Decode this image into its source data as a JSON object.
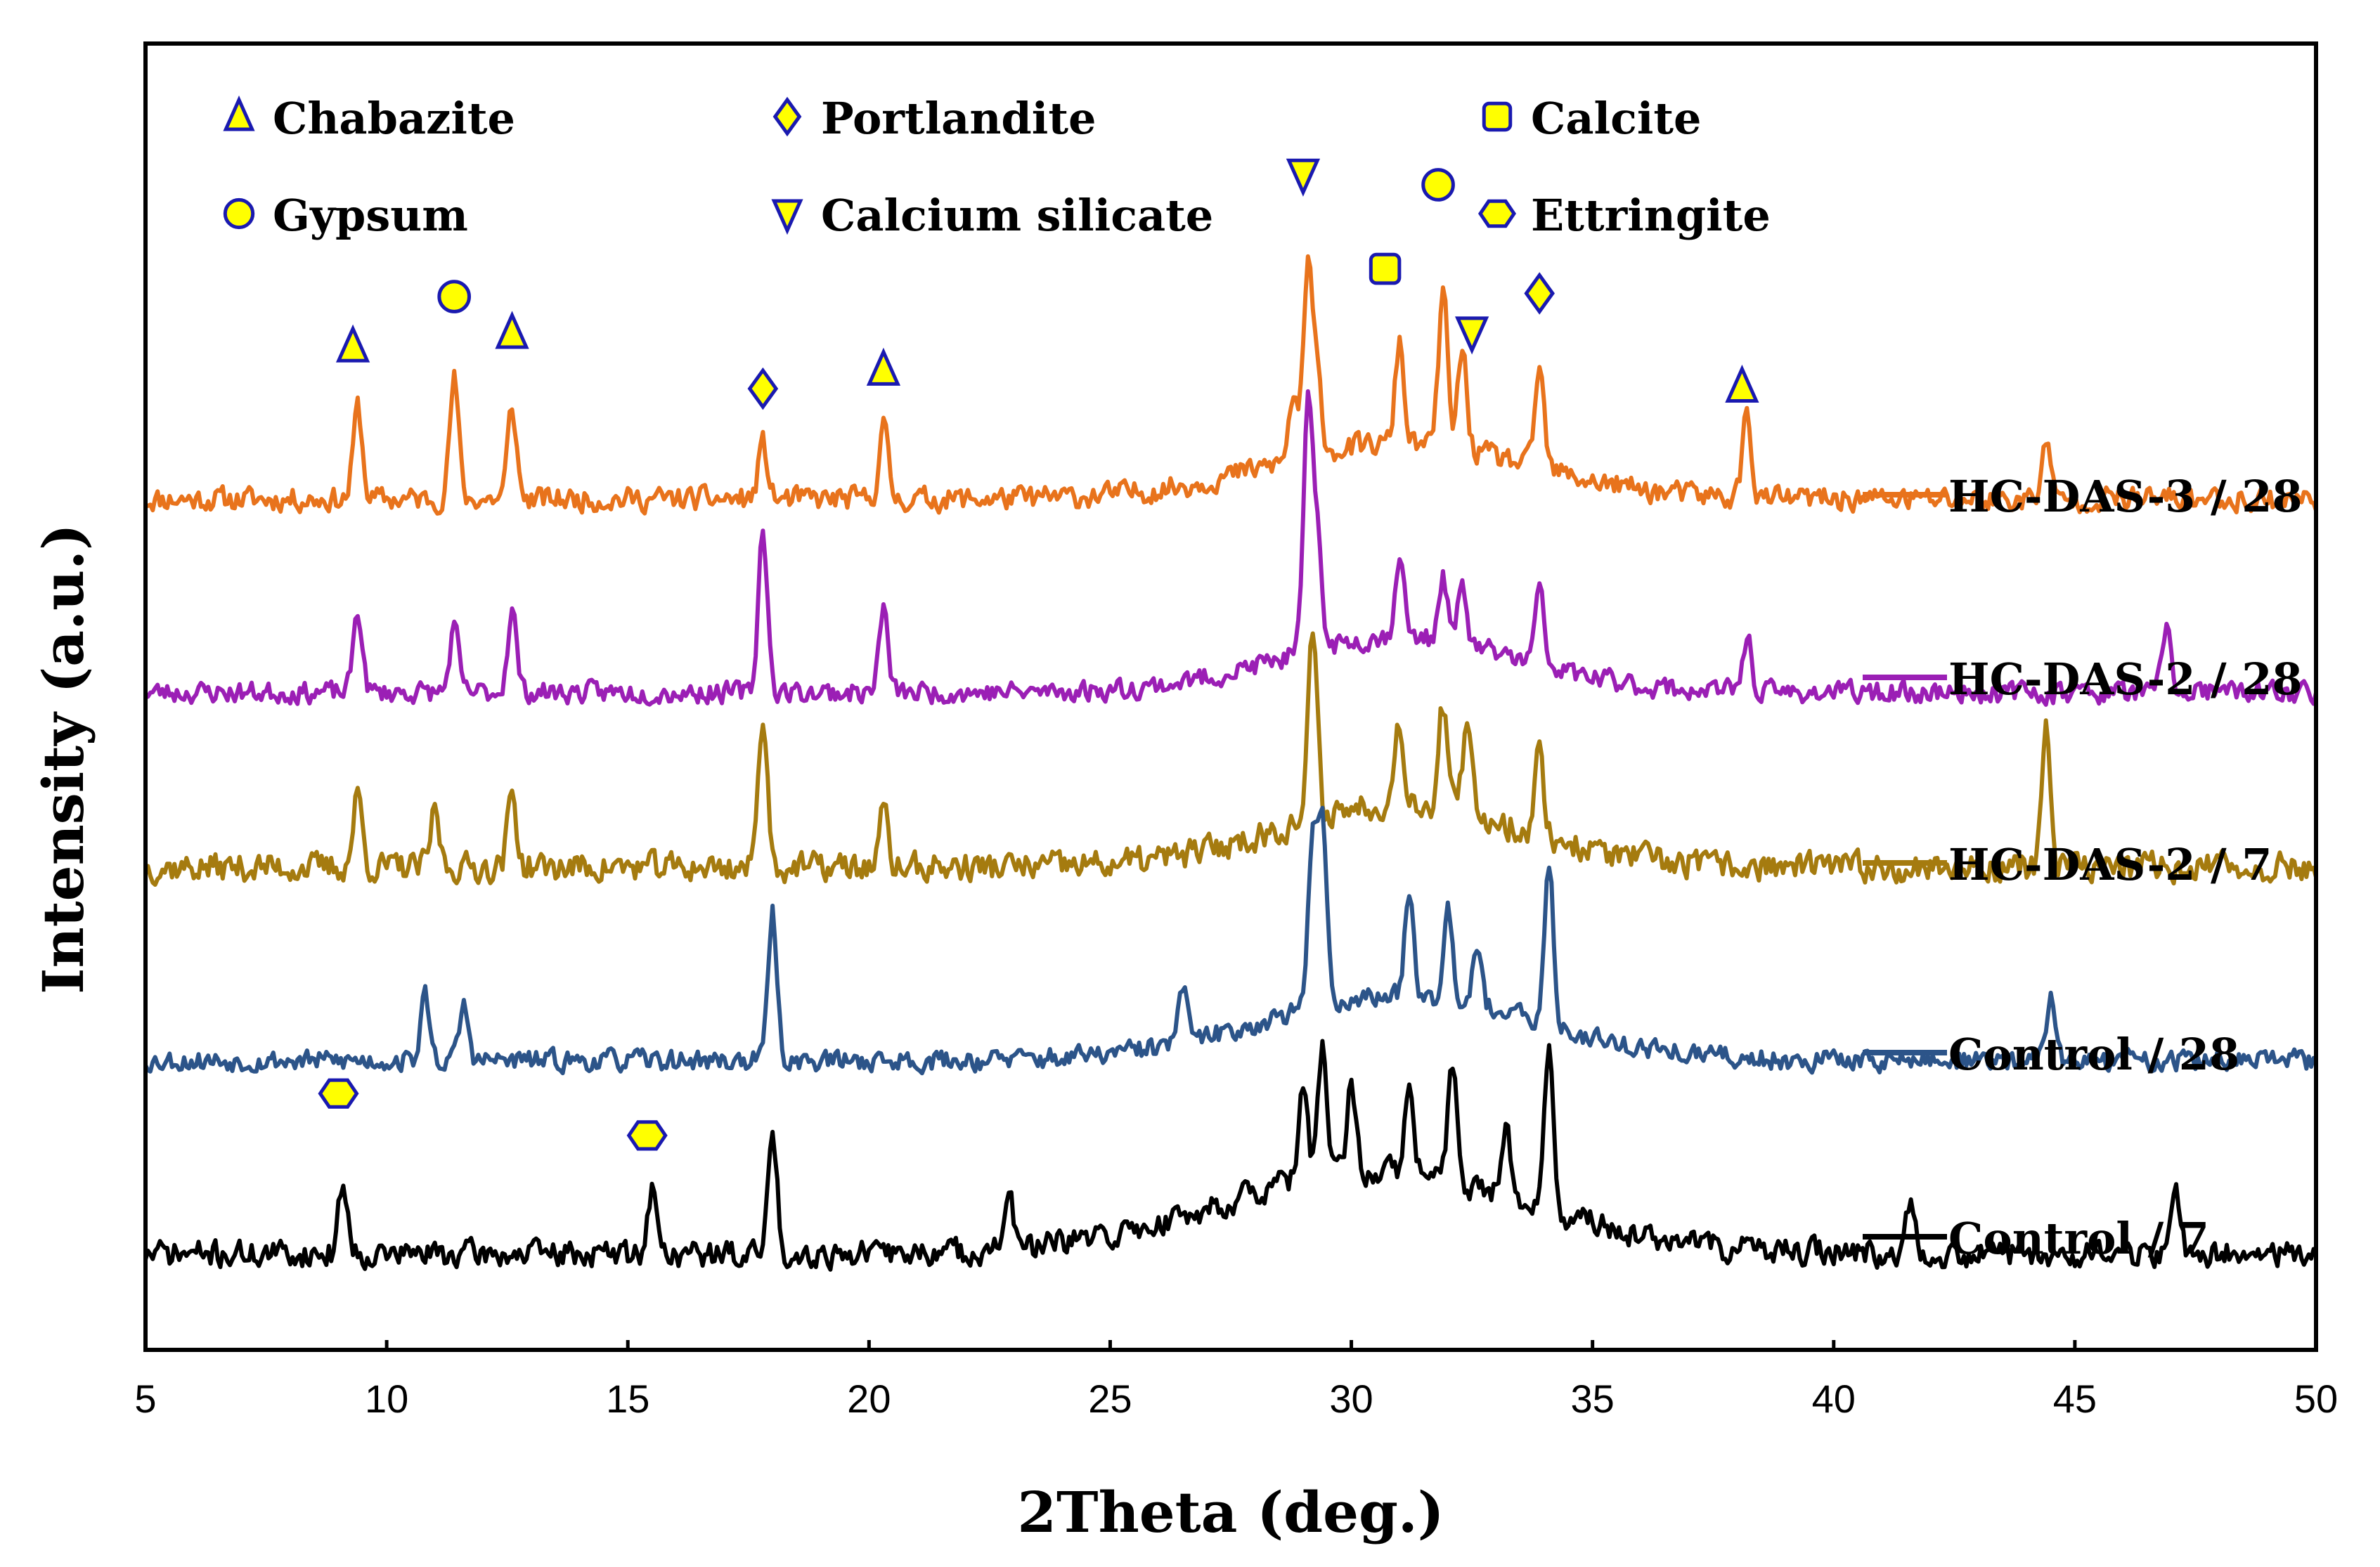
{
  "chart_data": {
    "type": "line",
    "title": "",
    "xlabel": "2Theta (deg.)",
    "ylabel": "Intensity (a.u.)",
    "xlim": [
      5,
      50
    ],
    "x_ticks": [
      5,
      10,
      15,
      20,
      25,
      30,
      35,
      40,
      45,
      50
    ],
    "y_ticks": [],
    "grid": false,
    "phase_legend": [
      {
        "name": "Chabazite",
        "marker": "triangle-up"
      },
      {
        "name": "Portlandite",
        "marker": "diamond"
      },
      {
        "name": "Calcite",
        "marker": "square"
      },
      {
        "name": "Gypsum",
        "marker": "circle"
      },
      {
        "name": "Calcium silicate",
        "marker": "triangle-down"
      },
      {
        "name": "Ettringite",
        "marker": "hexagon"
      }
    ],
    "series": [
      {
        "name": "HC-DAS-3 / 28",
        "color": "#E8731C",
        "offset": 4.0,
        "base": 0.35,
        "noise": 0.09,
        "seed": 11,
        "peaks": [
          [
            9.4,
            0.5
          ],
          [
            11.4,
            0.65
          ],
          [
            12.6,
            0.5
          ],
          [
            17.8,
            0.3
          ],
          [
            20.3,
            0.4
          ],
          [
            28.8,
            0.35
          ],
          [
            29.1,
            1.0
          ],
          [
            29.3,
            0.4
          ],
          [
            31.0,
            0.55
          ],
          [
            31.9,
            0.85
          ],
          [
            32.3,
            0.55
          ],
          [
            33.9,
            0.55
          ],
          [
            38.2,
            0.45
          ],
          [
            44.4,
            0.3
          ]
        ],
        "hump": [
          31.0,
          3.8,
          0.3
        ]
      },
      {
        "name": "HC-DAS-2 / 28",
        "color": "#9B1FB5",
        "offset": 3.0,
        "base": 0.3,
        "noise": 0.08,
        "seed": 23,
        "peaks": [
          [
            9.4,
            0.45
          ],
          [
            11.4,
            0.35
          ],
          [
            12.6,
            0.45
          ],
          [
            17.8,
            0.9
          ],
          [
            20.3,
            0.45
          ],
          [
            29.1,
            1.3
          ],
          [
            29.3,
            0.6
          ],
          [
            31.0,
            0.45
          ],
          [
            31.9,
            0.35
          ],
          [
            32.3,
            0.3
          ],
          [
            33.9,
            0.4
          ],
          [
            38.2,
            0.3
          ],
          [
            46.9,
            0.35
          ]
        ],
        "hump": [
          31.0,
          3.5,
          0.3
        ]
      },
      {
        "name": "HC-DAS-2 / 7",
        "color": "#A57B0F",
        "offset": 2.0,
        "base": 0.35,
        "noise": 0.11,
        "seed": 37,
        "peaks": [
          [
            9.4,
            0.4
          ],
          [
            11.0,
            0.3
          ],
          [
            12.6,
            0.4
          ],
          [
            17.8,
            0.85
          ],
          [
            20.3,
            0.3
          ],
          [
            29.2,
            1.0
          ],
          [
            31.0,
            0.45
          ],
          [
            31.9,
            0.55
          ],
          [
            32.4,
            0.45
          ],
          [
            33.9,
            0.45
          ],
          [
            44.4,
            0.75
          ]
        ],
        "hump": [
          31.0,
          3.5,
          0.35
        ]
      },
      {
        "name": "Control / 28",
        "color": "#2C5489",
        "offset": 1.0,
        "base": 0.3,
        "noise": 0.08,
        "seed": 53,
        "peaks": [
          [
            10.8,
            0.35
          ],
          [
            11.6,
            0.3
          ],
          [
            18.0,
            0.8
          ],
          [
            26.5,
            0.3
          ],
          [
            29.2,
            0.9
          ],
          [
            29.4,
            1.0
          ],
          [
            31.2,
            0.6
          ],
          [
            32.0,
            0.55
          ],
          [
            32.6,
            0.35
          ],
          [
            34.1,
            0.85
          ],
          [
            44.5,
            0.35
          ]
        ],
        "hump": [
          31.0,
          4.0,
          0.35
        ]
      },
      {
        "name": "Control / 7",
        "color": "#000000",
        "offset": 0.0,
        "base": 0.25,
        "noise": 0.1,
        "seed": 71,
        "peaks": [
          [
            9.1,
            0.4
          ],
          [
            15.5,
            0.35
          ],
          [
            18.0,
            0.65
          ],
          [
            22.9,
            0.3
          ],
          [
            29.0,
            0.5
          ],
          [
            29.4,
            0.7
          ],
          [
            30.0,
            0.45
          ],
          [
            31.2,
            0.45
          ],
          [
            32.1,
            0.65
          ],
          [
            33.2,
            0.4
          ],
          [
            34.1,
            0.85
          ],
          [
            41.6,
            0.3
          ],
          [
            47.1,
            0.3
          ]
        ],
        "hump": [
          30.5,
          4.5,
          0.45
        ]
      }
    ],
    "phase_markers": [
      {
        "phase": "Chabazite",
        "x": 9.3,
        "series": "HC-DAS-3 / 28",
        "above": 0.55
      },
      {
        "phase": "Gypsum",
        "x": 11.4,
        "series": "HC-DAS-3 / 28",
        "above": 0.45
      },
      {
        "phase": "Chabazite",
        "x": 12.6,
        "series": "HC-DAS-3 / 28",
        "above": 0.4
      },
      {
        "phase": "Portlandite",
        "x": 17.8,
        "series": "HC-DAS-3 / 28",
        "above": 0.3
      },
      {
        "phase": "Chabazite",
        "x": 20.3,
        "series": "HC-DAS-3 / 28",
        "above": 0.3
      },
      {
        "phase": "Calcium silicate",
        "x": 29.0,
        "series": "HC-DAS-3 / 28",
        "above": 0.95
      },
      {
        "phase": "Calcite",
        "x": 30.7,
        "series": "HC-DAS-3 / 28",
        "above": 0.95
      },
      {
        "phase": "Gypsum",
        "x": 31.8,
        "series": "HC-DAS-3 / 28",
        "above": 0.95
      },
      {
        "phase": "Calcium silicate",
        "x": 32.5,
        "series": "HC-DAS-3 / 28",
        "above": 0.6
      },
      {
        "phase": "Portlandite",
        "x": 33.9,
        "series": "HC-DAS-3 / 28",
        "above": 0.4
      },
      {
        "phase": "Chabazite",
        "x": 38.1,
        "series": "HC-DAS-3 / 28",
        "above": 0.35
      },
      {
        "phase": "Ettringite",
        "x": 9.0,
        "series": "Control / 7",
        "above": 0.65
      },
      {
        "phase": "Ettringite",
        "x": 15.4,
        "series": "Control / 7",
        "above": 0.45
      }
    ],
    "marker_fill": "#FFFF00",
    "marker_stroke": "#1A1AB0"
  }
}
